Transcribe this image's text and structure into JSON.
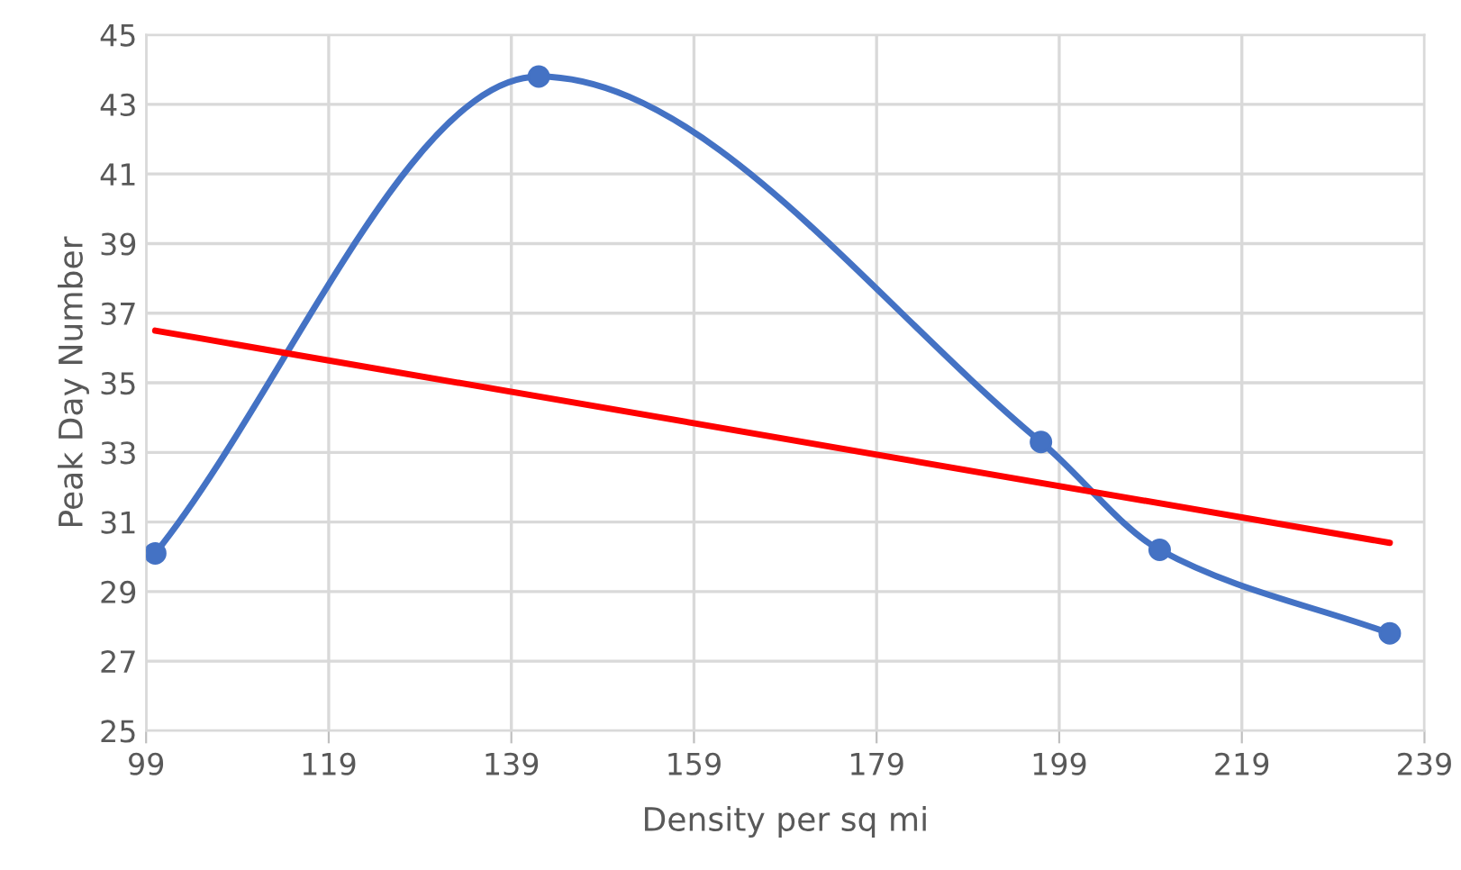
{
  "chart_data": {
    "type": "line",
    "xlabel": "Density per sq mi",
    "ylabel": "Peak Day Number",
    "xlim": [
      99,
      239
    ],
    "xticks": [
      99,
      119,
      139,
      159,
      179,
      199,
      219,
      239
    ],
    "ylim": [
      25,
      45
    ],
    "yticks": [
      25,
      27,
      29,
      31,
      33,
      35,
      37,
      39,
      41,
      43,
      45
    ],
    "grid": true,
    "series": [
      {
        "color": "#4472c4",
        "marker": "circle",
        "x": [
          100,
          142,
          197,
          210,
          235.2
        ],
        "values": [
          30.1,
          43.8,
          33.3,
          30.2,
          27.8
        ]
      },
      {
        "color": "#ff0000",
        "marker": "none",
        "x": [
          100,
          235.2
        ],
        "values": [
          36.5,
          30.4
        ]
      }
    ]
  }
}
